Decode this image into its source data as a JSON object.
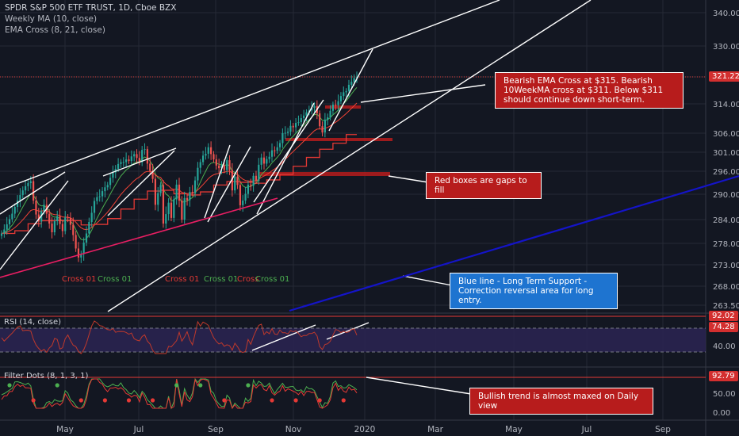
{
  "header": {
    "symbol": "SPDR S&P 500 ETF TRUST, 1D, Cboe BZX",
    "indicator1": "Weekly MA (10, close)",
    "indicator2": "EMA Cross (8, 21, close)"
  },
  "colors": {
    "background": "#131722",
    "grid": "#262a35",
    "up_candle": "#26a69a",
    "down_candle": "#ef5350",
    "weekly_ma": "#e53935",
    "ema_fast": "#4caf50",
    "ema_slow": "#f44336",
    "trend_pink": "#e91e63",
    "support_blue": "#1414c8",
    "rsi_line": "#c0392b",
    "rsi_band": "#2a2450",
    "filter_green": "#4caf50",
    "filter_red": "#e53935",
    "annotation_red": "#b71c1c",
    "annotation_blue": "#1e74d0"
  },
  "annotations": {
    "bearish_cross": "Bearish EMA Cross at $315.  Bearish 10WeekMA cross at $311.  Below $311 should continue down short-term.",
    "gaps": "Red boxes are gaps to fill",
    "support": "Blue line - Long Term Support - Correction reversal area for long entry.",
    "bullish": "Bullish trend is almost maxed on Daily view"
  },
  "cross_labels": [
    {
      "text": "Cross 01",
      "color": "#e53935"
    },
    {
      "text": "Cross 01",
      "color": "#4caf50"
    },
    {
      "text": "Cross 01",
      "color": "#e53935"
    },
    {
      "text": "Cross 01",
      "color": "#4caf50"
    },
    {
      "text": "Cross",
      "color": "#e53935"
    },
    {
      "text": "Cross 01",
      "color": "#4caf50"
    }
  ],
  "rsi": {
    "title": "RSI (14, close)",
    "current": "74.28",
    "upper": "92.02",
    "ticks": [
      "74.28",
      "40.00"
    ]
  },
  "filter": {
    "title": "Filter Dots (8, 1, 3, 1)",
    "current": "92.79",
    "ticks": [
      "50.00",
      "0.00"
    ]
  },
  "price_tag": "321.22",
  "chart_data": {
    "type": "candlestick",
    "title": "SPDR S&P 500 ETF TRUST, 1D, Cboe BZX",
    "y_axis_ticks": [
      340,
      330,
      321.22,
      314,
      306,
      301,
      296,
      290,
      284,
      278,
      273,
      268,
      263.5
    ],
    "y_tick_labels": [
      "340.00",
      "330.00",
      "321.22",
      "314.00",
      "306.00",
      "301.00",
      "296.00",
      "290.00",
      "284.00",
      "278.00",
      "273.00",
      "268.00",
      "263.50"
    ],
    "ylim": [
      262,
      343
    ],
    "x_ticks": [
      "May",
      "Jul",
      "Sep",
      "Nov",
      "2020",
      "Mar",
      "May",
      "Jul",
      "Sep"
    ],
    "last_close": 321.22,
    "close_series": [
      280.5,
      281.5,
      282.8,
      284.1,
      285.4,
      287,
      288.5,
      289.8,
      291,
      292.1,
      292.9,
      293.4,
      288.5,
      285.2,
      283.5,
      286,
      287.5,
      285.4,
      283,
      280.8,
      283.6,
      284.8,
      282.9,
      281.1,
      284.5,
      284.4,
      282.7,
      280.1,
      276.8,
      274.7,
      275.5,
      278.2,
      280.5,
      283.4,
      285.6,
      288.4,
      289.3,
      289.5,
      290.8,
      291.8,
      292.4,
      294.3,
      295.7,
      296.6,
      297.9,
      298.4,
      298.4,
      299.1,
      298.7,
      299.9,
      300.5,
      299.5,
      298.4,
      301.6,
      301.8,
      298,
      296.1,
      294,
      287.5,
      290.3,
      292.4,
      283,
      285.3,
      288,
      284.4,
      288.8,
      292.5,
      288.5,
      284,
      289.1,
      288.6,
      290.6,
      290.3,
      293.6,
      296.9,
      298.4,
      300.1,
      300.6,
      302.3,
      300.5,
      299.1,
      297.5,
      296.8,
      297.6,
      296.3,
      298.9,
      296.3,
      291,
      294.6,
      292.4,
      287.4,
      288.5,
      290.1,
      292.5,
      292.2,
      294.8,
      293.5,
      297.7,
      299.6,
      298,
      299.2,
      299.8,
      301.5,
      301.4,
      302.3,
      303.4,
      306,
      306.1,
      306.4,
      308,
      307.6,
      308.8,
      309,
      310.1,
      310.8,
      311.7,
      312.2,
      312.9,
      313.4,
      311.4,
      307.9,
      306.2,
      309.7,
      310.3,
      312.1,
      313.8,
      313.6,
      314.7,
      316.1,
      317.1,
      317.4,
      319.1,
      319.9,
      320.9,
      321.2
    ],
    "trendlines": "white channel lines, pink support, blue long-term support",
    "gap_levels": [
      313,
      304.5,
      295.5
    ]
  }
}
